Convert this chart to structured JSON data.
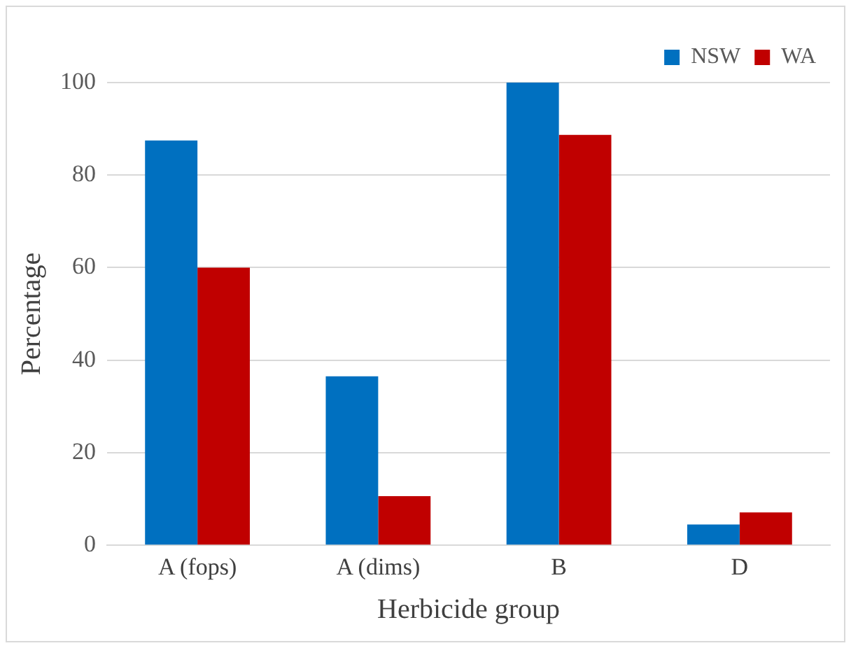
{
  "chart_data": {
    "type": "bar",
    "xlabel": "Herbicide group",
    "ylabel": "Percentage",
    "categories": [
      "A (fops)",
      "A (dims)",
      "B",
      "D"
    ],
    "series": [
      {
        "name": "NSW",
        "color": "#0070c0",
        "values": [
          87.5,
          36.5,
          100,
          4.5
        ]
      },
      {
        "name": "WA",
        "color": "#c00000",
        "values": [
          60,
          10.6,
          88.7,
          7.1
        ]
      }
    ],
    "ylim": [
      0,
      100
    ],
    "yticks": [
      0,
      20,
      40,
      60,
      80,
      100
    ],
    "grid": "y",
    "legend": "top right"
  }
}
